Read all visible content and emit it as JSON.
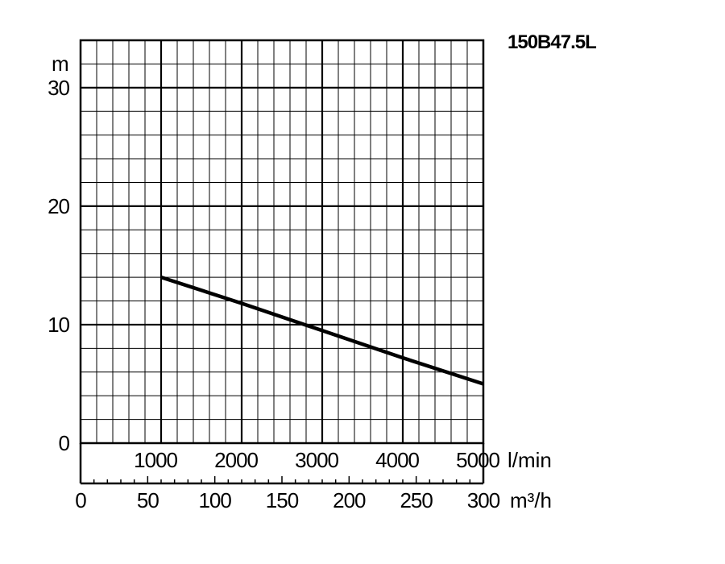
{
  "chart_data": {
    "type": "line",
    "title": "150B47.5L",
    "ylabel": "m",
    "xlabel_top": "l/min",
    "xlabel_bottom": "m³/h",
    "ylim": [
      0,
      34
    ],
    "xlim": [
      0,
      5000
    ],
    "grid": true,
    "y_ticks": [
      "0",
      "10",
      "20",
      "30"
    ],
    "x_ticks_top": [
      "1000",
      "2000",
      "3000",
      "4000",
      "5000"
    ],
    "x_ticks_bottom": [
      "0",
      "50",
      "100",
      "150",
      "200",
      "250",
      "300"
    ],
    "series": [
      {
        "x": [
          1000,
          2000,
          3000,
          4000,
          5000
        ],
        "y": [
          14.0,
          11.8,
          9.5,
          7.2,
          5.0
        ]
      }
    ]
  }
}
